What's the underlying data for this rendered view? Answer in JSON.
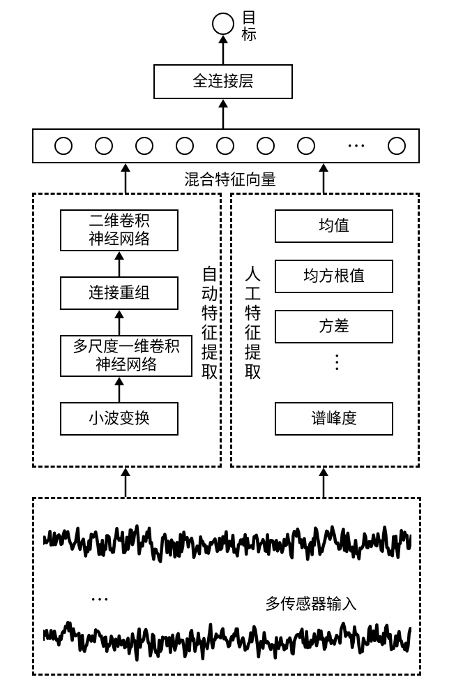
{
  "type": "flowchart",
  "target_label": "目\n标",
  "fully_connected": "全连接层",
  "mixed_feature_label": "混合特征向量",
  "auto_group": {
    "label": "自动特征提取",
    "items": [
      "小波变换",
      "多尺度一维卷积\n神经网络",
      "连接重组",
      "二维卷积\n神经网络"
    ]
  },
  "manual_group": {
    "label": "人工特征提取",
    "items": [
      "均值",
      "均方根值",
      "方差",
      "谱峰度"
    ]
  },
  "sensor_label": "多传感器输入",
  "ellipsis": "···",
  "colors": {
    "line": "#000000",
    "bg": "#ffffff",
    "text": "#000000"
  },
  "feature_circle_count": 7,
  "feature_circle_diameter": 26,
  "waveform": {
    "seed1": 17,
    "seed2": 53,
    "height": 60,
    "points": 330
  }
}
